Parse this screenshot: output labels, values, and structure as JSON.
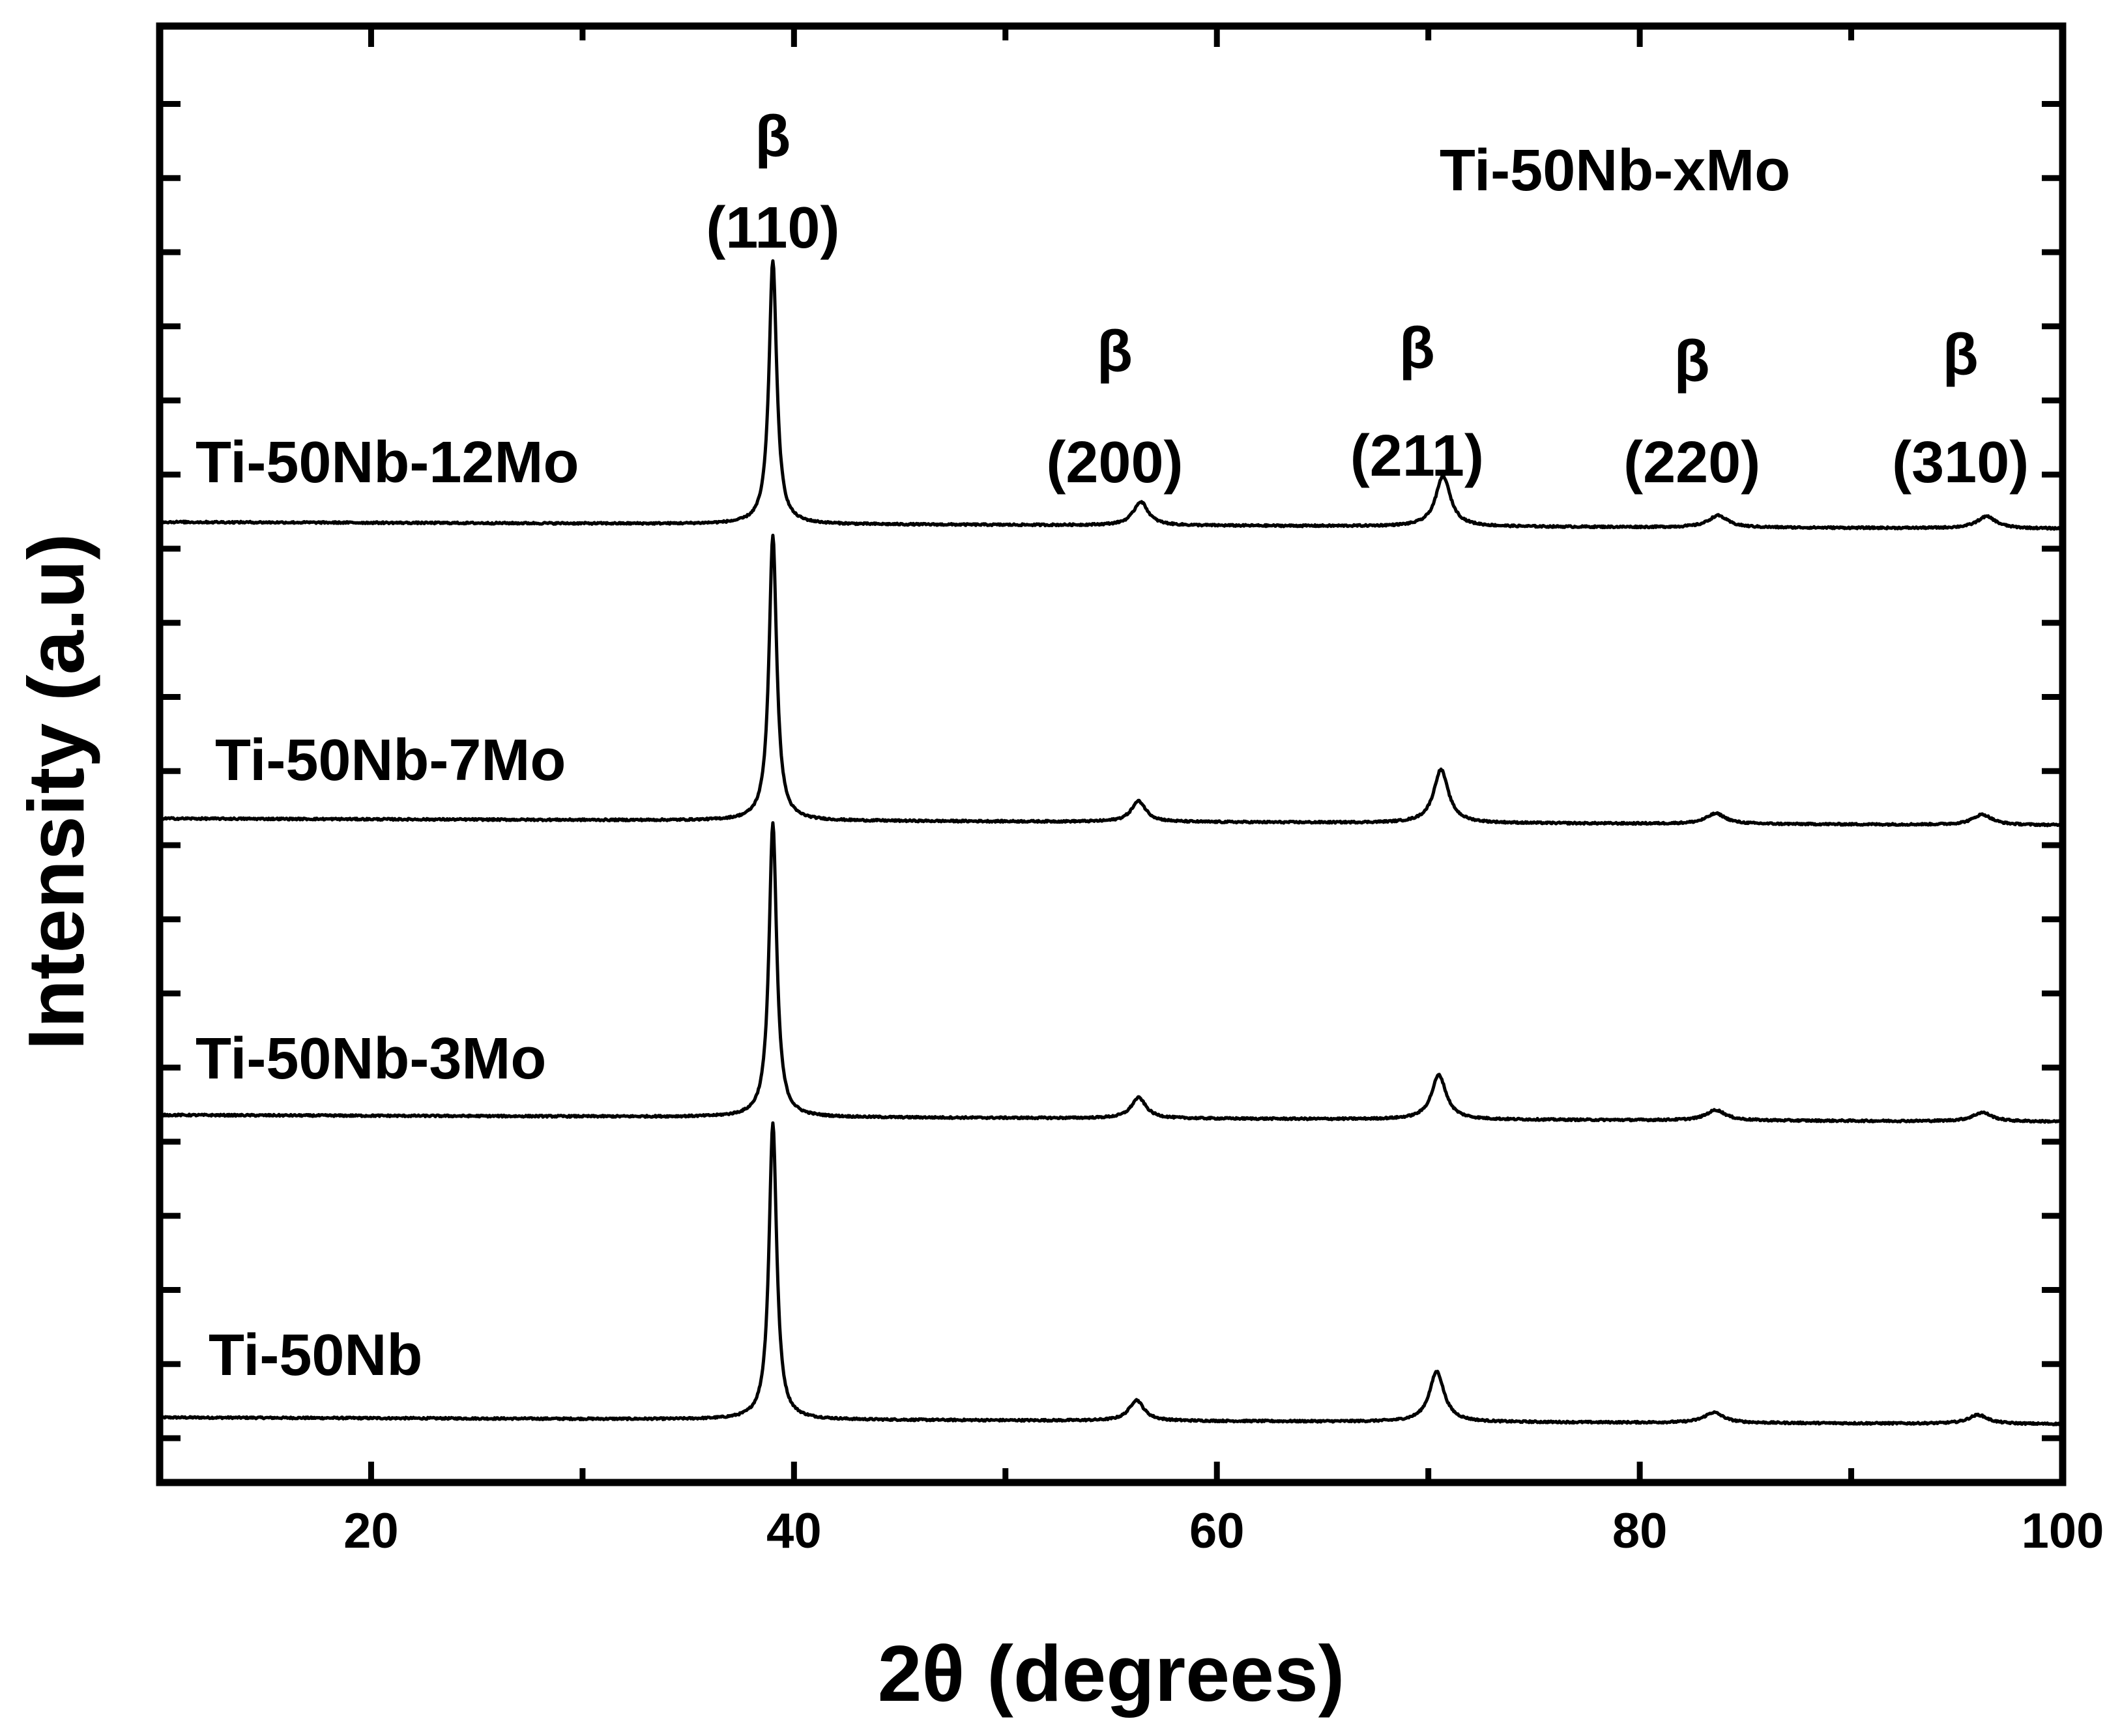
{
  "chart_data": {
    "type": "line",
    "title": "Ti-50Nb-xMo",
    "xlabel": "2θ (degrees)",
    "ylabel": "Intensity (a.u)",
    "xlim": [
      10,
      100
    ],
    "ylim": [
      0,
      4
    ],
    "x_ticks": [
      20,
      40,
      60,
      80,
      100
    ],
    "x_tick_labels": [
      "20",
      "40",
      "60",
      "80",
      "100"
    ],
    "grid": false,
    "legend": "none",
    "line_color": "#000000",
    "series": [
      {
        "name": "Ti-50Nb",
        "offset": 0,
        "baseline": 0.07,
        "peaks": [
          [
            39.0,
            1.0
          ],
          [
            56.2,
            0.07
          ],
          [
            70.4,
            0.17
          ],
          [
            83.5,
            0.035
          ],
          [
            96.0,
            0.03
          ]
        ]
      },
      {
        "name": "Ti-50Nb-3Mo",
        "offset": 1,
        "baseline": 0.09,
        "peaks": [
          [
            39.0,
            0.99
          ],
          [
            56.3,
            0.07
          ],
          [
            70.5,
            0.15
          ],
          [
            83.6,
            0.035
          ],
          [
            96.2,
            0.03
          ]
        ]
      },
      {
        "name": "Ti-50Nb-7Mo",
        "offset": 2,
        "baseline": 0.09,
        "peaks": [
          [
            39.0,
            0.96
          ],
          [
            56.3,
            0.07
          ],
          [
            70.6,
            0.18
          ],
          [
            83.6,
            0.035
          ],
          [
            96.2,
            0.035
          ]
        ]
      },
      {
        "name": "Ti-50Nb-12Mo",
        "offset": 3,
        "baseline": 0.09,
        "peaks": [
          [
            39.0,
            0.89
          ],
          [
            56.4,
            0.08
          ],
          [
            70.7,
            0.17
          ],
          [
            83.7,
            0.04
          ],
          [
            96.4,
            0.04
          ]
        ]
      }
    ],
    "annotations": [
      {
        "phase": "β",
        "plane": "(110)",
        "x": 39.0
      },
      {
        "phase": "β",
        "plane": "(200)",
        "x": 56.4
      },
      {
        "phase": "β",
        "plane": "(211)",
        "x": 70.7
      },
      {
        "phase": "β",
        "plane": "(220)",
        "x": 83.7
      },
      {
        "phase": "β",
        "plane": "(310)",
        "x": 96.4
      }
    ]
  }
}
